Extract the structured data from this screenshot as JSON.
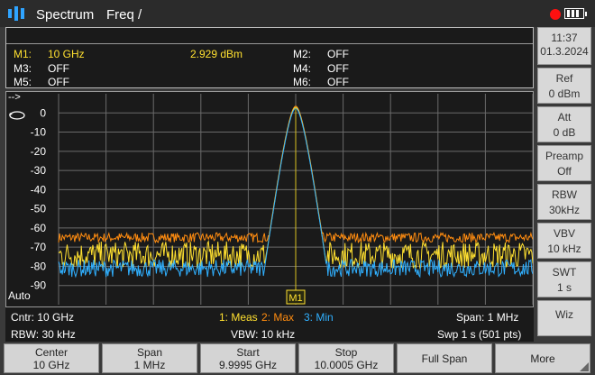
{
  "header": {
    "app_title": "Spectrum",
    "mode_title": "Freq /",
    "time": "11:37",
    "date": "01.3.2024",
    "rec_color": "#ff1010"
  },
  "markers": [
    {
      "label": "M1:",
      "value": "10 GHz",
      "level": "2.929  dBm",
      "active": true
    },
    {
      "label": "M2:",
      "value": "OFF"
    },
    {
      "label": "M3:",
      "value": "OFF"
    },
    {
      "label": "M4:",
      "value": "OFF"
    },
    {
      "label": "M5:",
      "value": "OFF"
    },
    {
      "label": "M6:",
      "value": "OFF"
    }
  ],
  "plot": {
    "arrow": "-->",
    "auto": "Auto",
    "marker_tag": "M1",
    "y_ticks": [
      "0",
      "-10",
      "-20",
      "-30",
      "-40",
      "-50",
      "-60",
      "-70",
      "-80",
      "-90"
    ]
  },
  "status": {
    "center": "Cntr: 10 GHz",
    "span": "Span: 1   MHz",
    "rbw": "RBW: 30 kHz",
    "vbw": "VBW: 10 kHz",
    "swp": "Swp 1 s (501 pts)",
    "trace1": "1: Meas",
    "trace2": "2: Max",
    "trace3": "3: Min"
  },
  "side_buttons": [
    {
      "l1": "Ref",
      "l2": "0 dBm"
    },
    {
      "l1": "Att",
      "l2": "0 dB"
    },
    {
      "l1": "Preamp",
      "l2": "Off"
    },
    {
      "l1": "RBW",
      "l2": "30kHz"
    },
    {
      "l1": "VBV",
      "l2": "10 kHz"
    },
    {
      "l1": "SWT",
      "l2": "1 s"
    },
    {
      "l1": "Wiz",
      "l2": ""
    }
  ],
  "softkeys": [
    {
      "l1": "Center",
      "l2": "10 GHz"
    },
    {
      "l1": "Span",
      "l2": "1 MHz"
    },
    {
      "l1": "Start",
      "l2": "9.9995 GHz"
    },
    {
      "l1": "Stop",
      "l2": "10.0005 GHz"
    },
    {
      "l1": "Full Span",
      "l2": ""
    },
    {
      "l1": "More",
      "l2": ""
    }
  ],
  "colors": {
    "meas": "#ffe030",
    "max": "#ff8c10",
    "min": "#30b0ff",
    "grid": "#6a6a6a"
  },
  "chart_data": {
    "type": "line",
    "x_range_hz": [
      9999500000,
      10000500000
    ],
    "ylim": [
      -100,
      10
    ],
    "y_ticks": [
      0,
      -10,
      -20,
      -30,
      -40,
      -50,
      -60,
      -70,
      -80,
      -90
    ],
    "peak_frequency_hz": 10000000000,
    "peak_level_dbm": 2.929,
    "series": [
      {
        "name": "1: Meas",
        "noise_floor_dbm": -74
      },
      {
        "name": "2: Max",
        "noise_floor_dbm": -65
      },
      {
        "name": "3: Min",
        "noise_floor_dbm": -81
      }
    ]
  }
}
